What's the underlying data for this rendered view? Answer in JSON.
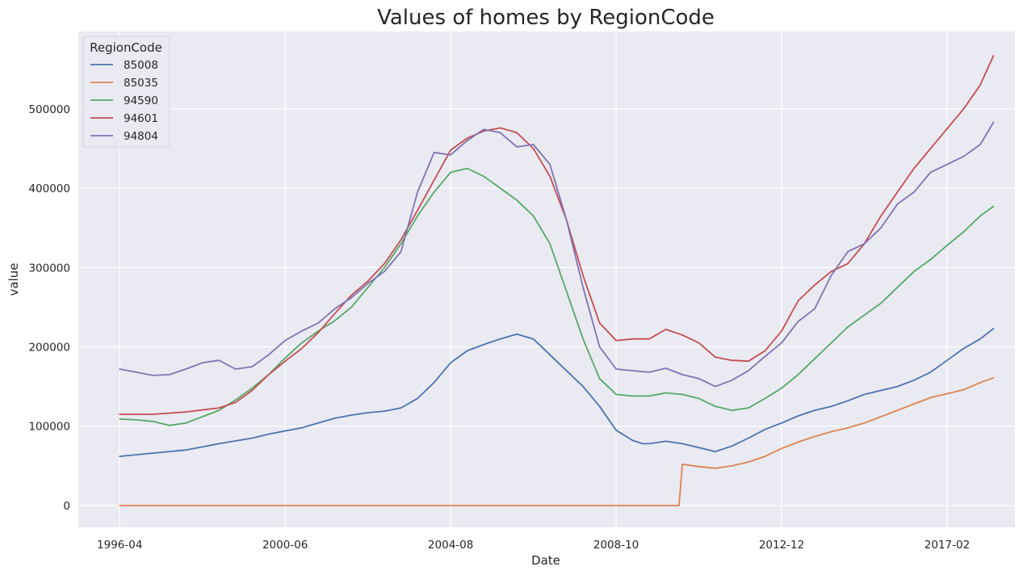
{
  "chart_data": {
    "type": "line",
    "title": "Values of homes by RegionCode",
    "xlabel": "Date",
    "ylabel": "value",
    "x_ticks": [
      "1996-04",
      "2000-06",
      "2004-08",
      "2008-10",
      "2012-12",
      "2017-02"
    ],
    "x_tick_positions": [
      0,
      50,
      100,
      150,
      200,
      250
    ],
    "xlim": [
      -12.5,
      270.5
    ],
    "ylim": [
      -27500,
      597500
    ],
    "y_ticks": [
      0,
      100000,
      200000,
      300000,
      400000,
      500000
    ],
    "grid": true,
    "legend": {
      "title": "RegionCode",
      "placement": "top-left"
    },
    "colors": {
      "background": "#eaeaf2",
      "grid": "#ffffff",
      "85008": "#4c72b0",
      "85035": "#dd8452",
      "94590": "#55a868",
      "94601": "#c44e52",
      "94804": "#8172b3"
    },
    "series": [
      {
        "name": "85008",
        "color": "#4c72b0",
        "points": [
          [
            0,
            62000
          ],
          [
            10,
            66000
          ],
          [
            20,
            70000
          ],
          [
            30,
            78000
          ],
          [
            40,
            85000
          ],
          [
            45,
            90000
          ],
          [
            50,
            94000
          ],
          [
            55,
            98000
          ],
          [
            60,
            104000
          ],
          [
            65,
            110000
          ],
          [
            70,
            114000
          ],
          [
            75,
            117000
          ],
          [
            80,
            119000
          ],
          [
            85,
            123000
          ],
          [
            90,
            135000
          ],
          [
            95,
            155000
          ],
          [
            100,
            180000
          ],
          [
            105,
            195000
          ],
          [
            110,
            203000
          ],
          [
            115,
            210000
          ],
          [
            120,
            216000
          ],
          [
            125,
            210000
          ],
          [
            130,
            190000
          ],
          [
            135,
            170000
          ],
          [
            140,
            150000
          ],
          [
            145,
            125000
          ],
          [
            150,
            95000
          ],
          [
            155,
            82000
          ],
          [
            158,
            78000
          ],
          [
            160,
            78000
          ],
          [
            165,
            81000
          ],
          [
            170,
            78000
          ],
          [
            175,
            73000
          ],
          [
            180,
            68000
          ],
          [
            185,
            75000
          ],
          [
            190,
            85000
          ],
          [
            195,
            96000
          ],
          [
            200,
            104000
          ],
          [
            205,
            113000
          ],
          [
            210,
            120000
          ],
          [
            215,
            125000
          ],
          [
            220,
            132000
          ],
          [
            225,
            140000
          ],
          [
            230,
            145000
          ],
          [
            235,
            150000
          ],
          [
            240,
            158000
          ],
          [
            245,
            168000
          ],
          [
            250,
            183000
          ],
          [
            255,
            198000
          ],
          [
            260,
            210000
          ],
          [
            264,
            223000
          ]
        ]
      },
      {
        "name": "85035",
        "color": "#dd8452",
        "points": [
          [
            0,
            0
          ],
          [
            169,
            0
          ],
          [
            170,
            52000
          ],
          [
            175,
            49000
          ],
          [
            180,
            47000
          ],
          [
            185,
            50000
          ],
          [
            190,
            55000
          ],
          [
            195,
            62000
          ],
          [
            200,
            72000
          ],
          [
            205,
            80000
          ],
          [
            210,
            87000
          ],
          [
            215,
            93000
          ],
          [
            220,
            98000
          ],
          [
            225,
            104000
          ],
          [
            230,
            112000
          ],
          [
            235,
            120000
          ],
          [
            240,
            128000
          ],
          [
            245,
            136000
          ],
          [
            250,
            141000
          ],
          [
            255,
            146000
          ],
          [
            260,
            155000
          ],
          [
            264,
            161000
          ]
        ]
      },
      {
        "name": "94590",
        "color": "#55a868",
        "points": [
          [
            0,
            109000
          ],
          [
            5,
            108000
          ],
          [
            10,
            106000
          ],
          [
            15,
            101000
          ],
          [
            20,
            104000
          ],
          [
            25,
            112000
          ],
          [
            30,
            120000
          ],
          [
            35,
            133000
          ],
          [
            40,
            148000
          ],
          [
            45,
            165000
          ],
          [
            50,
            186000
          ],
          [
            55,
            205000
          ],
          [
            60,
            220000
          ],
          [
            65,
            233000
          ],
          [
            70,
            250000
          ],
          [
            75,
            275000
          ],
          [
            80,
            300000
          ],
          [
            85,
            330000
          ],
          [
            90,
            365000
          ],
          [
            95,
            395000
          ],
          [
            100,
            420000
          ],
          [
            105,
            425000
          ],
          [
            110,
            415000
          ],
          [
            115,
            400000
          ],
          [
            120,
            385000
          ],
          [
            125,
            365000
          ],
          [
            130,
            330000
          ],
          [
            135,
            270000
          ],
          [
            140,
            210000
          ],
          [
            145,
            160000
          ],
          [
            150,
            140000
          ],
          [
            155,
            138000
          ],
          [
            160,
            138000
          ],
          [
            165,
            142000
          ],
          [
            170,
            140000
          ],
          [
            175,
            135000
          ],
          [
            180,
            125000
          ],
          [
            185,
            120000
          ],
          [
            190,
            123000
          ],
          [
            195,
            135000
          ],
          [
            200,
            148000
          ],
          [
            205,
            165000
          ],
          [
            210,
            185000
          ],
          [
            215,
            205000
          ],
          [
            220,
            225000
          ],
          [
            225,
            240000
          ],
          [
            230,
            255000
          ],
          [
            235,
            275000
          ],
          [
            240,
            295000
          ],
          [
            245,
            310000
          ],
          [
            250,
            328000
          ],
          [
            255,
            345000
          ],
          [
            260,
            365000
          ],
          [
            264,
            377000
          ]
        ]
      },
      {
        "name": "94601",
        "color": "#c44e52",
        "points": [
          [
            0,
            115000
          ],
          [
            10,
            115000
          ],
          [
            20,
            118000
          ],
          [
            30,
            123000
          ],
          [
            35,
            130000
          ],
          [
            40,
            145000
          ],
          [
            45,
            165000
          ],
          [
            50,
            182000
          ],
          [
            55,
            198000
          ],
          [
            60,
            218000
          ],
          [
            65,
            242000
          ],
          [
            70,
            265000
          ],
          [
            75,
            283000
          ],
          [
            80,
            305000
          ],
          [
            85,
            335000
          ],
          [
            90,
            372000
          ],
          [
            95,
            410000
          ],
          [
            100,
            448000
          ],
          [
            105,
            463000
          ],
          [
            110,
            472000
          ],
          [
            115,
            476000
          ],
          [
            120,
            470000
          ],
          [
            125,
            450000
          ],
          [
            130,
            415000
          ],
          [
            135,
            360000
          ],
          [
            140,
            290000
          ],
          [
            145,
            230000
          ],
          [
            150,
            208000
          ],
          [
            155,
            210000
          ],
          [
            160,
            210000
          ],
          [
            165,
            222000
          ],
          [
            170,
            215000
          ],
          [
            175,
            205000
          ],
          [
            180,
            187000
          ],
          [
            185,
            183000
          ],
          [
            190,
            182000
          ],
          [
            195,
            195000
          ],
          [
            200,
            220000
          ],
          [
            205,
            258000
          ],
          [
            210,
            278000
          ],
          [
            215,
            295000
          ],
          [
            220,
            305000
          ],
          [
            225,
            330000
          ],
          [
            230,
            365000
          ],
          [
            235,
            395000
          ],
          [
            240,
            425000
          ],
          [
            245,
            450000
          ],
          [
            250,
            475000
          ],
          [
            255,
            500000
          ],
          [
            260,
            530000
          ],
          [
            264,
            567000
          ]
        ]
      },
      {
        "name": "94804",
        "color": "#8172b3",
        "points": [
          [
            0,
            172000
          ],
          [
            5,
            168000
          ],
          [
            10,
            164000
          ],
          [
            15,
            165000
          ],
          [
            20,
            172000
          ],
          [
            25,
            180000
          ],
          [
            30,
            183000
          ],
          [
            35,
            172000
          ],
          [
            40,
            175000
          ],
          [
            45,
            190000
          ],
          [
            50,
            208000
          ],
          [
            55,
            220000
          ],
          [
            60,
            230000
          ],
          [
            65,
            248000
          ],
          [
            70,
            262000
          ],
          [
            75,
            280000
          ],
          [
            80,
            295000
          ],
          [
            85,
            320000
          ],
          [
            90,
            395000
          ],
          [
            95,
            445000
          ],
          [
            100,
            442000
          ],
          [
            105,
            460000
          ],
          [
            110,
            474000
          ],
          [
            115,
            470000
          ],
          [
            120,
            452000
          ],
          [
            125,
            455000
          ],
          [
            130,
            430000
          ],
          [
            135,
            360000
          ],
          [
            140,
            275000
          ],
          [
            145,
            200000
          ],
          [
            150,
            172000
          ],
          [
            155,
            170000
          ],
          [
            160,
            168000
          ],
          [
            165,
            173000
          ],
          [
            170,
            165000
          ],
          [
            175,
            160000
          ],
          [
            180,
            150000
          ],
          [
            185,
            158000
          ],
          [
            190,
            170000
          ],
          [
            195,
            188000
          ],
          [
            200,
            205000
          ],
          [
            205,
            232000
          ],
          [
            210,
            248000
          ],
          [
            215,
            290000
          ],
          [
            220,
            320000
          ],
          [
            225,
            330000
          ],
          [
            230,
            350000
          ],
          [
            235,
            380000
          ],
          [
            240,
            395000
          ],
          [
            245,
            420000
          ],
          [
            250,
            430000
          ],
          [
            255,
            440000
          ],
          [
            260,
            455000
          ],
          [
            264,
            483000
          ]
        ]
      }
    ]
  }
}
